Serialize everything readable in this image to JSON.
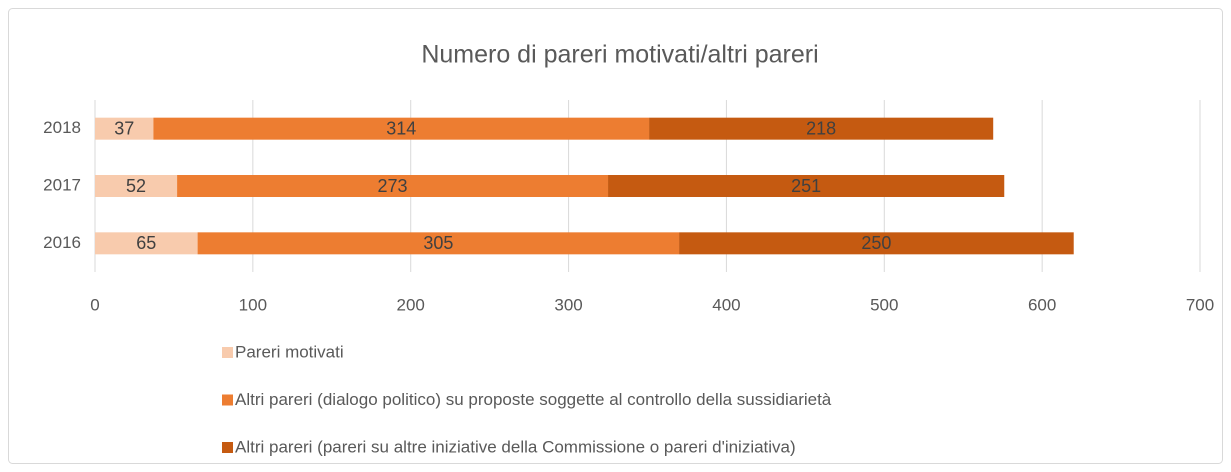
{
  "chart_data": {
    "type": "stacked_bar_horizontal",
    "title": "Numero di pareri motivati/altri pareri",
    "categories": [
      "2016",
      "2017",
      "2018"
    ],
    "series": [
      {
        "name": "Pareri motivati",
        "color": "#f8cbad",
        "values": [
          65,
          52,
          37
        ]
      },
      {
        "name": "Altri pareri (dialogo politico) su proposte soggette al controllo della sussidiarietà",
        "color": "#ed7d31",
        "values": [
          305,
          273,
          314
        ]
      },
      {
        "name": "Altri pareri (pareri su altre iniziative della Commissione o pareri d'iniziativa)",
        "color": "#c55a11",
        "values": [
          250,
          251,
          218
        ]
      }
    ],
    "xlim": [
      0,
      700
    ],
    "xticks": [
      0,
      100,
      200,
      300,
      400,
      500,
      600,
      700
    ],
    "grid": true,
    "legend": "bottom"
  }
}
